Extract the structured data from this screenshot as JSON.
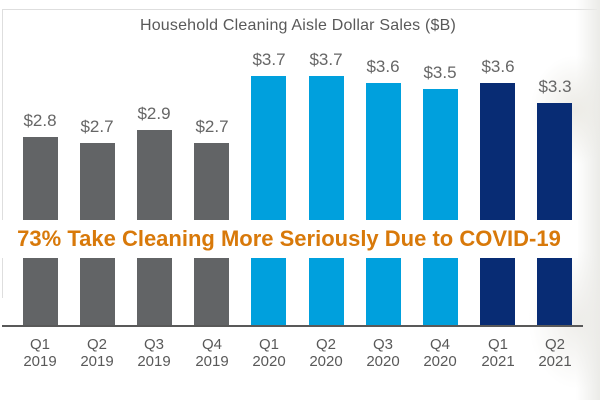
{
  "overlay": {
    "text": "73% Take Cleaning More Seriously Due to COVID-19",
    "color": "#d8790a"
  },
  "chart_data": {
    "type": "bar",
    "title": "Household Cleaning Aisle Dollar Sales ($B)",
    "categories": [
      {
        "quarter": "Q1",
        "year": "2019"
      },
      {
        "quarter": "Q2",
        "year": "2019"
      },
      {
        "quarter": "Q3",
        "year": "2019"
      },
      {
        "quarter": "Q4",
        "year": "2019"
      },
      {
        "quarter": "Q1",
        "year": "2020"
      },
      {
        "quarter": "Q2",
        "year": "2020"
      },
      {
        "quarter": "Q3",
        "year": "2020"
      },
      {
        "quarter": "Q4",
        "year": "2020"
      },
      {
        "quarter": "Q1",
        "year": "2021"
      },
      {
        "quarter": "Q2",
        "year": "2021"
      }
    ],
    "values": [
      2.8,
      2.7,
      2.9,
      2.7,
      3.7,
      3.7,
      3.6,
      3.5,
      3.6,
      3.3
    ],
    "value_labels": [
      "$2.8",
      "$2.7",
      "$2.9",
      "$2.7",
      "$3.7",
      "$3.7",
      "$3.6",
      "$3.5",
      "$3.6",
      "$3.3"
    ],
    "bar_colors": [
      "#626466",
      "#626466",
      "#626466",
      "#626466",
      "#00a0dd",
      "#00a0dd",
      "#00a0dd",
      "#00a0dd",
      "#082c74",
      "#082c74"
    ],
    "color_legend": {
      "year_2019": "#626466",
      "year_2020": "#00a0dd",
      "year_2021": "#082c74"
    },
    "xlabel": "",
    "ylabel": "",
    "ylim": [
      0,
      4
    ],
    "grid": false,
    "legend": "none",
    "data_labels": true,
    "text_color": "#595959",
    "axis_color": "#595959"
  }
}
